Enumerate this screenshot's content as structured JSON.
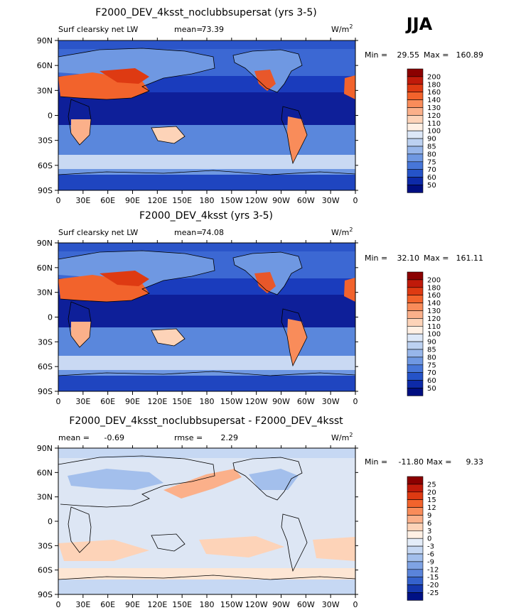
{
  "season_label": "JJA",
  "lon_ticks": [
    "0",
    "30E",
    "60E",
    "90E",
    "120E",
    "150E",
    "180",
    "150W",
    "120W",
    "90W",
    "60W",
    "30W",
    "0"
  ],
  "lat_ticks": [
    "90N",
    "60N",
    "30N",
    "0",
    "30S",
    "60S",
    "90S"
  ],
  "units_base": "W/m",
  "units_exp": "2",
  "chart_data": [
    {
      "type": "heatmap",
      "title": "F2000_DEV_4ksst_noclubbsupersat (yrs 3-5)",
      "variable": "Surf clearsky net LW",
      "stat_label": "mean=",
      "stat_value": "73.39",
      "min_label": "Min =",
      "min_value": "29.55",
      "max_label": "Max =",
      "max_value": "160.89",
      "xlim": [
        0,
        360
      ],
      "ylim": [
        -90,
        90
      ],
      "colorbar_levels": [
        "200",
        "180",
        "160",
        "140",
        "130",
        "120",
        "110",
        "100",
        "90",
        "85",
        "80",
        "75",
        "70",
        "60",
        "50"
      ],
      "colorbar_colors": [
        "#8b0000",
        "#c01a0a",
        "#de3a12",
        "#f2632c",
        "#f98c5a",
        "#fbb08a",
        "#fdd3b8",
        "#fff0e4",
        "#dde8f8",
        "#bcd1f1",
        "#97b6ea",
        "#6f98e2",
        "#4776d8",
        "#2553c8",
        "#0d2aa8",
        "#000e80"
      ]
    },
    {
      "type": "heatmap",
      "title": "F2000_DEV_4ksst (yrs 3-5)",
      "variable": "Surf clearsky net LW",
      "stat_label": "mean=",
      "stat_value": "74.08",
      "min_label": "Min =",
      "min_value": "32.10",
      "max_label": "Max =",
      "max_value": "161.11",
      "xlim": [
        0,
        360
      ],
      "ylim": [
        -90,
        90
      ],
      "colorbar_levels": [
        "200",
        "180",
        "160",
        "140",
        "130",
        "120",
        "110",
        "100",
        "90",
        "85",
        "80",
        "75",
        "70",
        "60",
        "50"
      ],
      "colorbar_colors": [
        "#8b0000",
        "#c01a0a",
        "#de3a12",
        "#f2632c",
        "#f98c5a",
        "#fbb08a",
        "#fdd3b8",
        "#fff0e4",
        "#dde8f8",
        "#bcd1f1",
        "#97b6ea",
        "#6f98e2",
        "#4776d8",
        "#2553c8",
        "#0d2aa8",
        "#000e80"
      ]
    },
    {
      "type": "heatmap",
      "title": "F2000_DEV_4ksst_noclubbsupersat - F2000_DEV_4ksst",
      "stat_label": "mean =",
      "stat_value": "-0.69",
      "rmse_label": "rmse =",
      "rmse_value": "2.29",
      "min_label": "Min =",
      "min_value": "-11.80",
      "max_label": "Max =",
      "max_value": "9.33",
      "xlim": [
        0,
        360
      ],
      "ylim": [
        -90,
        90
      ],
      "colorbar_levels": [
        "25",
        "20",
        "15",
        "12",
        "9",
        "6",
        "3",
        "0",
        "-3",
        "-6",
        "-9",
        "-12",
        "-15",
        "-20",
        "-25"
      ],
      "colorbar_colors": [
        "#8b0000",
        "#c01a0a",
        "#de3a12",
        "#f2632c",
        "#f98c5a",
        "#fbb08a",
        "#fdd3b8",
        "#fff0e4",
        "#e4edf9",
        "#c6d8f3",
        "#a3bfec",
        "#7fa3e4",
        "#5a84da",
        "#3562cc",
        "#1537ad",
        "#001185"
      ]
    }
  ]
}
